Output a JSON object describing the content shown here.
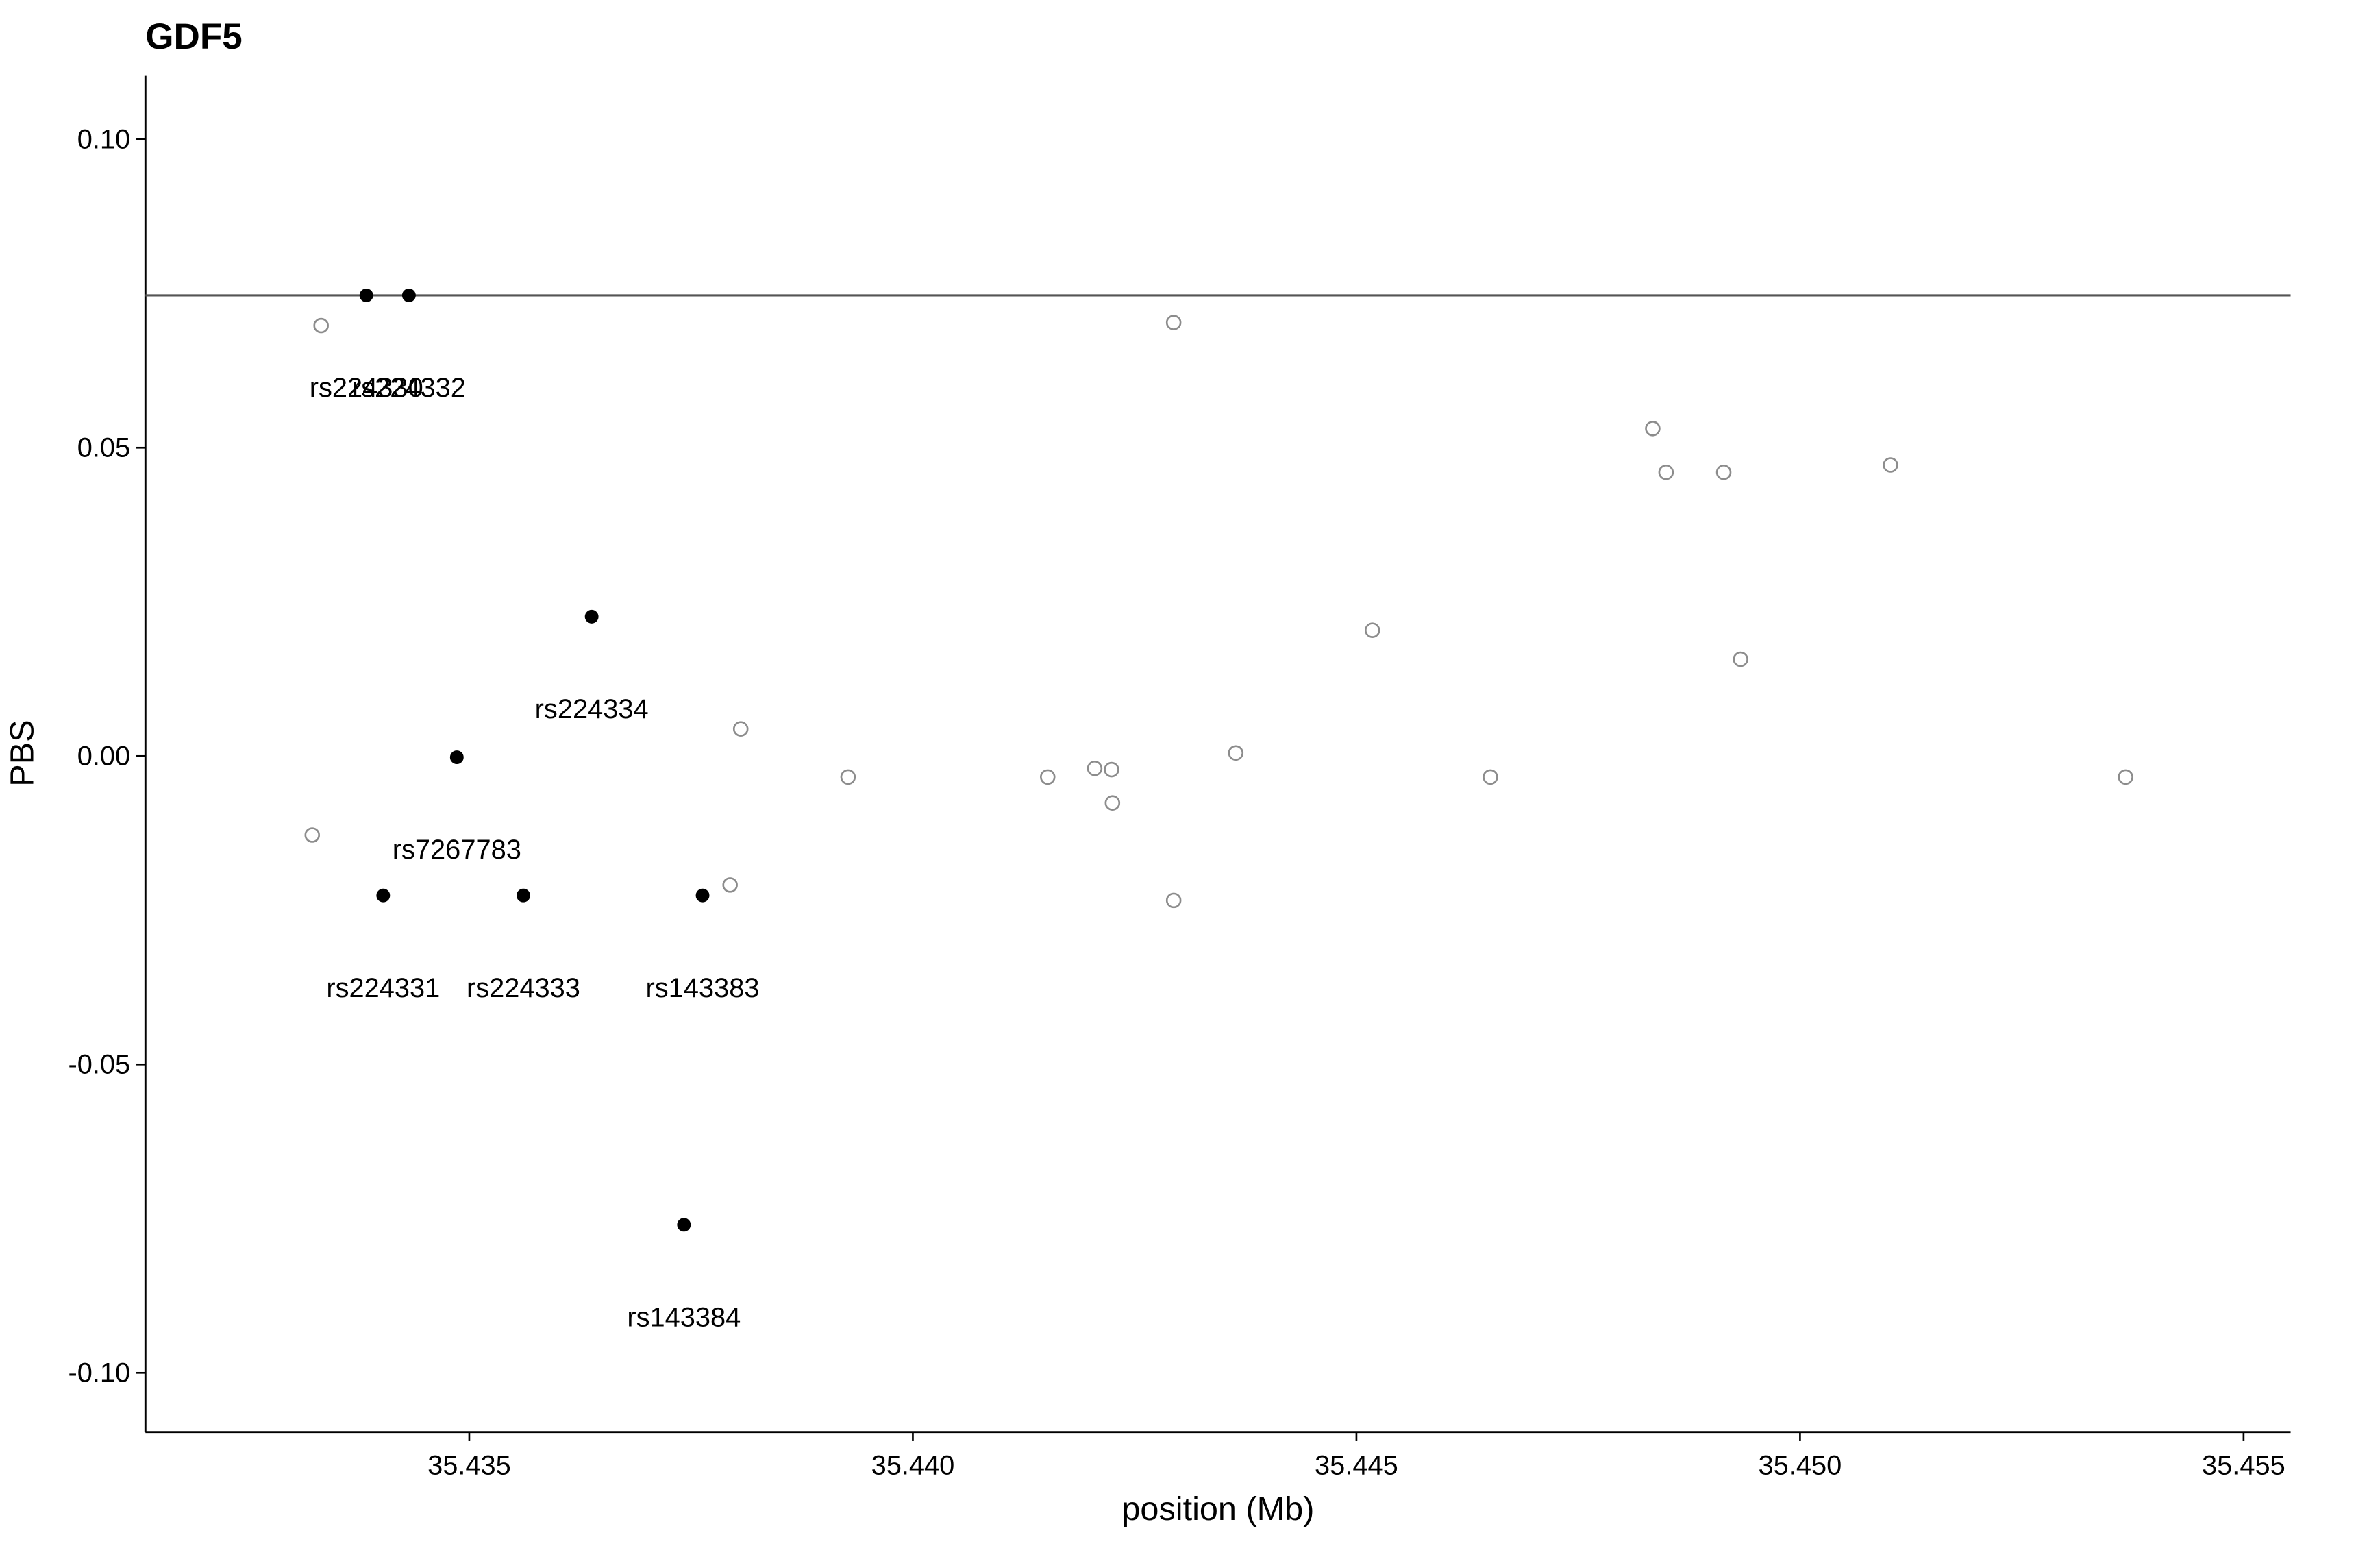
{
  "chart_data": {
    "type": "scatter",
    "title": "GDF5",
    "x_label": "position (Mb)",
    "y_label": "PBS",
    "xlim": [
      35.43135,
      35.45553
    ],
    "ylim": [
      -0.1096,
      0.1103
    ],
    "xticks": [
      {
        "value": 35.435,
        "label": "35.435"
      },
      {
        "value": 35.44,
        "label": "35.440"
      },
      {
        "value": 35.445,
        "label": "35.445"
      },
      {
        "value": 35.45,
        "label": "35.450"
      },
      {
        "value": 35.455,
        "label": "35.455"
      }
    ],
    "yticks": [
      {
        "value": -0.1,
        "label": "-0.10"
      },
      {
        "value": -0.05,
        "label": "-0.05"
      },
      {
        "value": 0,
        "label": "0.00"
      },
      {
        "value": 0.05,
        "label": "0.05"
      },
      {
        "value": 0.1,
        "label": "0.10"
      }
    ],
    "hline": 0.0747,
    "hline_color": "#555555",
    "grid": false,
    "series": [
      {
        "marker": "filled",
        "color": "#000000",
        "x": [
          35.43384,
          35.43432,
          35.43638,
          35.43486,
          35.43403,
          35.43561,
          35.43763,
          35.43742
        ],
        "values": [
          0.0747,
          0.0747,
          0.0226,
          -0.0002,
          -0.0226,
          -0.0226,
          -0.0226,
          -0.076
        ],
        "labels": [
          "rs224330",
          "rs224332",
          "rs224334",
          "rs7267783",
          "rs224331",
          "rs224333",
          "rs143383",
          "rs143384"
        ]
      },
      {
        "marker": "open",
        "color": "#8c8c8c",
        "x": [
          35.43333,
          35.43323,
          35.43806,
          35.43794,
          35.43927,
          35.44152,
          35.44205,
          35.44224,
          35.44225,
          35.44294,
          35.44294,
          35.44364,
          35.44518,
          35.44651,
          35.44834,
          35.44849,
          35.44914,
          35.44933,
          35.45102,
          35.45367
        ],
        "values": [
          0.0698,
          -0.0128,
          0.0044,
          -0.0209,
          -0.0034,
          -0.0034,
          -0.002,
          -0.0022,
          -0.0076,
          0.0703,
          -0.0234,
          0.0005,
          0.0204,
          -0.0034,
          0.0531,
          0.046,
          0.046,
          0.0157,
          0.0472,
          -0.0034
        ]
      }
    ]
  }
}
